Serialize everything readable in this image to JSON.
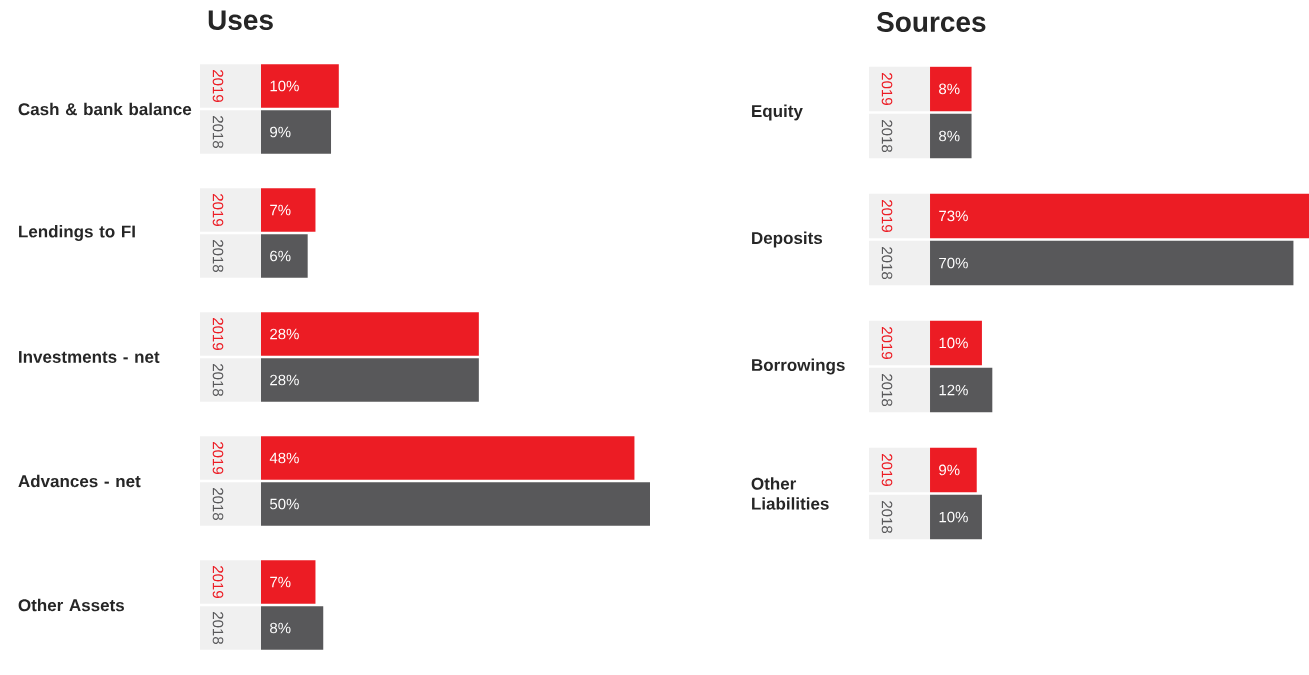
{
  "chart_data": [
    {
      "type": "bar",
      "orientation": "horizontal",
      "title": "Uses",
      "categories": [
        "Cash & bank balance",
        "Lendings to FI",
        "Investments - net",
        "Advances - net",
        "Other Assets"
      ],
      "xlim": [
        0,
        50
      ],
      "series": [
        {
          "name": "2019",
          "color": "#ec1c24",
          "values": [
            10,
            7,
            28,
            48,
            7
          ],
          "value_labels": [
            "10%",
            "7%",
            "28%",
            "48%",
            "7%"
          ]
        },
        {
          "name": "2018",
          "color": "#58585a",
          "values": [
            9,
            6,
            28,
            50,
            8
          ],
          "value_labels": [
            "9%",
            "6%",
            "28%",
            "50%",
            "8%"
          ]
        }
      ]
    },
    {
      "type": "bar",
      "orientation": "horizontal",
      "title": "Sources",
      "categories": [
        "Equity",
        "Deposits",
        "Borrowings",
        "Other Liabilities"
      ],
      "xlim": [
        0,
        73
      ],
      "series": [
        {
          "name": "2019",
          "color": "#ec1c24",
          "values": [
            8,
            73,
            10,
            9
          ],
          "value_labels": [
            "8%",
            "73%",
            "10%",
            "9%"
          ]
        },
        {
          "name": "2018",
          "color": "#58585a",
          "values": [
            8,
            70,
            12,
            10
          ],
          "value_labels": [
            "8%",
            "70%",
            "12%",
            "10%"
          ]
        }
      ]
    }
  ]
}
